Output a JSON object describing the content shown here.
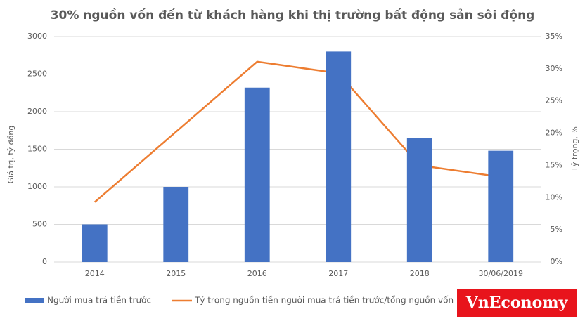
{
  "chart_data": {
    "type": "bar-line",
    "title": "30% nguồn vốn đến từ khách hàng khi thị trường bất động sản sôi động",
    "y_label": "Giá trị, tỷ đồng",
    "y2_label": "Tỷ trọng, %",
    "categories": [
      "2014",
      "2015",
      "2016",
      "2017",
      "2018",
      "30/06/2019"
    ],
    "series": [
      {
        "name": "Người mua trả tiền trước",
        "type": "bar",
        "color": "#4472c4",
        "values": [
          500,
          1000,
          2320,
          2800,
          1650,
          1480
        ]
      },
      {
        "name": "Tỷ trọng nguồn tiền người mua trả tiền trước/tổng nguồn vốn",
        "type": "line",
        "axis": "y2",
        "color": "#ed7d31",
        "values": [
          9.3,
          20.2,
          31.1,
          29.3,
          15.0,
          13.2
        ]
      }
    ],
    "ylim": [
      0,
      3000
    ],
    "yticks": [
      0,
      500,
      1000,
      1500,
      2000,
      2500,
      3000
    ],
    "y2lim": [
      0,
      35
    ],
    "y2ticks": [
      {
        "value": 0,
        "label": "0%"
      },
      {
        "value": 5,
        "label": "5%"
      },
      {
        "value": 10,
        "label": "10%"
      },
      {
        "value": 15,
        "label": "15%"
      },
      {
        "value": 20,
        "label": "20%"
      },
      {
        "value": 25,
        "label": "25%"
      },
      {
        "value": 30,
        "label": "30%"
      },
      {
        "value": 35,
        "label": "35%"
      }
    ],
    "grid": true,
    "legend": "bottom",
    "watermark": "VnEconomy"
  }
}
